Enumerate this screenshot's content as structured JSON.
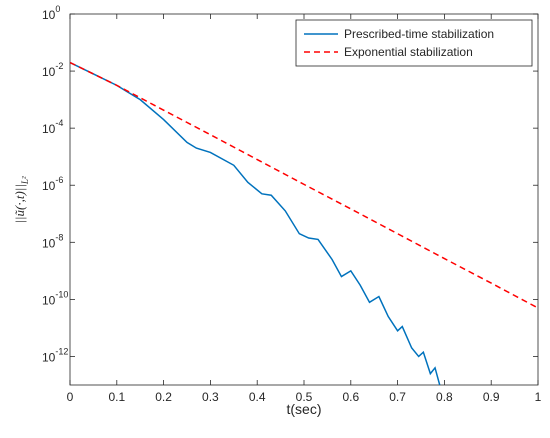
{
  "chart_data": {
    "type": "line",
    "xlabel": "t(sec)",
    "ylabel": "||ũ(·,t)||",
    "ylabel_subscript": "L²",
    "log_y": true,
    "grid": false,
    "legend": "top-right",
    "xlim": [
      0,
      1
    ],
    "ylim": [
      1e-13,
      1
    ],
    "xticks": [
      0,
      0.1,
      0.2,
      0.3,
      0.4,
      0.5,
      0.6,
      0.7,
      0.8,
      0.9,
      1
    ],
    "yticks": [
      {
        "value": 1e-12,
        "label": "10",
        "exponent": "-12"
      },
      {
        "value": 1e-10,
        "label": "10",
        "exponent": "-10"
      },
      {
        "value": 1e-08,
        "label": "10",
        "exponent": "-8"
      },
      {
        "value": 1e-06,
        "label": "10",
        "exponent": "-6"
      },
      {
        "value": 0.0001,
        "label": "10",
        "exponent": "-4"
      },
      {
        "value": 0.01,
        "label": "10",
        "exponent": "-2"
      },
      {
        "value": 1,
        "label": "10",
        "exponent": "0"
      }
    ],
    "series": [
      {
        "name": "Prescribed-time stabilization",
        "color": "#0072bd",
        "dash": "solid",
        "x": [
          0,
          0.05,
          0.1,
          0.15,
          0.2,
          0.25,
          0.27,
          0.3,
          0.35,
          0.38,
          0.41,
          0.43,
          0.46,
          0.49,
          0.51,
          0.53,
          0.56,
          0.58,
          0.6,
          0.62,
          0.64,
          0.66,
          0.68,
          0.7,
          0.71,
          0.73,
          0.745,
          0.755,
          0.77,
          0.78,
          0.79
        ],
        "values": [
          0.01995,
          0.00794,
          0.00316,
          0.001,
          0.0002,
          3.16e-05,
          2e-05,
          1.41e-05,
          5e-06,
          1.26e-06,
          5e-07,
          4.47e-07,
          1.26e-07,
          2e-08,
          1.41e-08,
          1.26e-08,
          2.5e-09,
          6.3e-10,
          1e-09,
          3.16e-10,
          7.9e-11,
          1.26e-10,
          2.5e-11,
          7.9e-12,
          1.12e-11,
          2e-12,
          1e-12,
          1.41e-12,
          2.5e-13,
          4e-13,
          1e-13
        ]
      },
      {
        "name": "Exponential stabilization",
        "color": "#ff0000",
        "dash": "dashed",
        "x": [
          0,
          0.1,
          0.2,
          0.3,
          0.4,
          0.5,
          0.6,
          0.7,
          0.8,
          0.9,
          1
        ],
        "values": [
          0.02,
          0.00316,
          0.000427,
          5.89e-05,
          7.94e-06,
          1.07e-06,
          1.48e-07,
          2e-08,
          2.69e-09,
          3.72e-10,
          5e-11
        ]
      }
    ]
  }
}
